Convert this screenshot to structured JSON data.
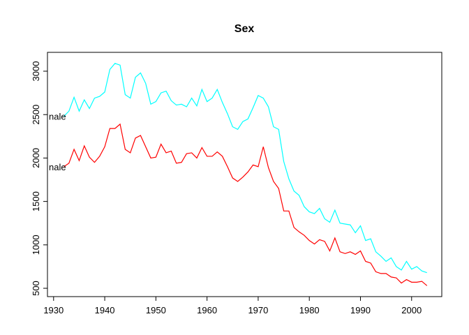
{
  "chart_data": {
    "type": "line",
    "title": "Sex",
    "x": [
      1932,
      1933,
      1934,
      1935,
      1936,
      1937,
      1938,
      1939,
      1940,
      1941,
      1942,
      1943,
      1944,
      1945,
      1946,
      1947,
      1948,
      1949,
      1950,
      1951,
      1952,
      1953,
      1954,
      1955,
      1956,
      1957,
      1958,
      1959,
      1960,
      1961,
      1962,
      1963,
      1964,
      1965,
      1966,
      1967,
      1968,
      1969,
      1970,
      1971,
      1972,
      1973,
      1974,
      1975,
      1976,
      1977,
      1978,
      1979,
      1980,
      1981,
      1982,
      1983,
      1984,
      1985,
      1986,
      1987,
      1988,
      1989,
      1990,
      1991,
      1992,
      1993,
      1994,
      1995,
      1996,
      1997,
      1998,
      1999,
      2000,
      2001,
      2002,
      2003
    ],
    "series": [
      {
        "label": "nale",
        "color": "#00ffff",
        "values": [
          2480,
          2540,
          2700,
          2540,
          2670,
          2570,
          2690,
          2710,
          2760,
          3020,
          3090,
          3070,
          2730,
          2690,
          2930,
          2980,
          2860,
          2620,
          2650,
          2750,
          2770,
          2660,
          2610,
          2620,
          2590,
          2690,
          2600,
          2790,
          2650,
          2690,
          2790,
          2640,
          2510,
          2360,
          2330,
          2420,
          2450,
          2580,
          2720,
          2690,
          2590,
          2360,
          2330,
          1960,
          1760,
          1620,
          1570,
          1440,
          1380,
          1360,
          1420,
          1300,
          1260,
          1400,
          1250,
          1240,
          1230,
          1140,
          1220,
          1050,
          1070,
          920,
          870,
          810,
          850,
          750,
          710,
          810,
          720,
          750,
          700,
          680
        ]
      },
      {
        "label": "nale",
        "color": "#ff0000",
        "values": [
          1900,
          1940,
          2100,
          1970,
          2140,
          2010,
          1950,
          2020,
          2130,
          2340,
          2340,
          2390,
          2100,
          2060,
          2230,
          2260,
          2130,
          2000,
          2010,
          2160,
          2060,
          2080,
          1940,
          1950,
          2050,
          2060,
          2000,
          2120,
          2020,
          2020,
          2070,
          2020,
          1900,
          1770,
          1730,
          1780,
          1840,
          1920,
          1900,
          2130,
          1890,
          1730,
          1650,
          1390,
          1390,
          1200,
          1150,
          1110,
          1050,
          1010,
          1060,
          1040,
          930,
          1080,
          920,
          900,
          920,
          890,
          930,
          810,
          790,
          690,
          670,
          670,
          630,
          620,
          560,
          600,
          570,
          570,
          580,
          530
        ]
      }
    ],
    "xlim": [
      1928.8,
      2005.9
    ],
    "xticks": [
      1930,
      1940,
      1950,
      1960,
      1970,
      1980,
      1990,
      2000
    ],
    "ylim": [
      404,
      3217
    ],
    "yticks": [
      500,
      1000,
      1500,
      2000,
      2500,
      3000
    ]
  }
}
